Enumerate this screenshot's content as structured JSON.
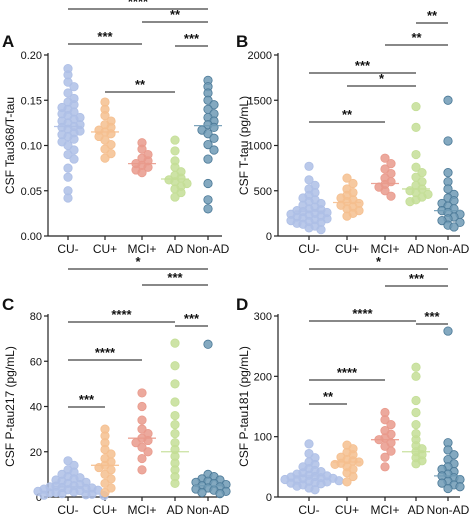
{
  "figure": {
    "colors": {
      "CU-": "#aebfe6",
      "CU+": "#f5bf8f",
      "MCI+": "#e99a8c",
      "AD": "#c4de96",
      "Non-AD": "#6f9ab5"
    }
  },
  "chart_data": [
    {
      "panel": "A",
      "type": "scatter",
      "ylabel": "CSF Tau368/T-tau",
      "ylim": [
        0,
        0.2
      ],
      "yticks": [
        "0.00",
        "0.05",
        "0.10",
        "0.15",
        "0.20"
      ],
      "categories": [
        "CU-",
        "CU+",
        "MCI+",
        "AD",
        "Non-AD"
      ],
      "series": [
        {
          "category": "CU-",
          "median": 0.121,
          "values": [
            0.185,
            0.178,
            0.17,
            0.165,
            0.158,
            0.152,
            0.148,
            0.145,
            0.142,
            0.14,
            0.137,
            0.135,
            0.133,
            0.131,
            0.129,
            0.127,
            0.125,
            0.123,
            0.121,
            0.12,
            0.118,
            0.116,
            0.114,
            0.112,
            0.11,
            0.107,
            0.104,
            0.1,
            0.095,
            0.09,
            0.085,
            0.075,
            0.065,
            0.05,
            0.042
          ]
        },
        {
          "category": "CU+",
          "median": 0.115,
          "values": [
            0.148,
            0.14,
            0.133,
            0.127,
            0.123,
            0.12,
            0.117,
            0.115,
            0.113,
            0.11,
            0.106,
            0.101,
            0.096,
            0.091,
            0.086
          ]
        },
        {
          "category": "MCI+",
          "median": 0.08,
          "values": [
            0.103,
            0.096,
            0.09,
            0.086,
            0.083,
            0.08,
            0.078,
            0.076,
            0.073,
            0.07
          ]
        },
        {
          "category": "AD",
          "median": 0.063,
          "values": [
            0.106,
            0.094,
            0.083,
            0.076,
            0.071,
            0.067,
            0.064,
            0.062,
            0.06,
            0.058,
            0.055,
            0.052,
            0.048,
            0.043
          ]
        },
        {
          "category": "Non-AD",
          "median": 0.122,
          "values": [
            0.172,
            0.165,
            0.158,
            0.15,
            0.145,
            0.14,
            0.135,
            0.131,
            0.127,
            0.123,
            0.12,
            0.117,
            0.113,
            0.108,
            0.101,
            0.095,
            0.085,
            0.058,
            0.04,
            0.03
          ]
        }
      ],
      "significance": [
        {
          "from": "CU-",
          "to": "Non-AD",
          "label": "****"
        },
        {
          "from": "MCI+",
          "to": "Non-AD",
          "label": "**"
        },
        {
          "from": "CU-",
          "to": "MCI+",
          "label": "***"
        },
        {
          "from": "AD",
          "to": "Non-AD",
          "label": "***"
        },
        {
          "from": "CU+",
          "to": "AD",
          "label": "**"
        }
      ]
    },
    {
      "panel": "B",
      "type": "scatter",
      "ylabel": "CSF T-tau (pg/mL)",
      "ylim": [
        0,
        2000
      ],
      "yticks": [
        "0",
        "500",
        "1000",
        "1500",
        "2000"
      ],
      "categories": [
        "CU-",
        "CU+",
        "MCI+",
        "AD",
        "Non-AD"
      ],
      "series": [
        {
          "category": "CU-",
          "median": 275,
          "values": [
            770,
            620,
            560,
            520,
            480,
            450,
            420,
            400,
            380,
            360,
            340,
            320,
            300,
            290,
            280,
            270,
            260,
            250,
            240,
            230,
            220,
            210,
            200,
            190,
            180,
            170,
            160,
            150,
            140,
            130,
            110,
            90,
            70
          ]
        },
        {
          "category": "CU+",
          "median": 370,
          "values": [
            640,
            580,
            520,
            480,
            450,
            420,
            400,
            380,
            360,
            340,
            320,
            300,
            280,
            250,
            220
          ]
        },
        {
          "category": "MCI+",
          "median": 580,
          "values": [
            860,
            800,
            740,
            690,
            640,
            600,
            570,
            540,
            500,
            440
          ]
        },
        {
          "category": "AD",
          "median": 520,
          "values": [
            1430,
            1200,
            900,
            760,
            700,
            650,
            600,
            560,
            520,
            500,
            480,
            460,
            430,
            400,
            380
          ]
        },
        {
          "category": "Non-AD",
          "median": 280,
          "values": [
            1500,
            1050,
            700,
            600,
            520,
            460,
            420,
            390,
            360,
            330,
            300,
            280,
            260,
            240,
            210,
            190,
            170,
            150,
            120,
            100
          ]
        }
      ],
      "significance": [
        {
          "from": "AD",
          "to": "Non-AD",
          "label": "**"
        },
        {
          "from": "MCI+",
          "to": "Non-AD",
          "label": "**"
        },
        {
          "from": "CU-",
          "to": "AD",
          "label": "***"
        },
        {
          "from": "CU+",
          "to": "AD",
          "label": "*"
        },
        {
          "from": "CU-",
          "to": "MCI+",
          "label": "**"
        }
      ]
    },
    {
      "panel": "C",
      "type": "scatter",
      "ylabel": "CSF P-tau217 (pg/mL)",
      "ylim": [
        0,
        80
      ],
      "yticks": [
        "0",
        "20",
        "40",
        "60",
        "80"
      ],
      "categories": [
        "CU-",
        "CU+",
        "MCI+",
        "AD",
        "Non-AD"
      ],
      "series": [
        {
          "category": "CU-",
          "median": 4.5,
          "values": [
            16,
            14,
            12,
            11,
            10,
            9,
            8.5,
            8,
            7.5,
            7,
            6.5,
            6,
            5.5,
            5,
            4.8,
            4.5,
            4.2,
            4,
            3.8,
            3.5,
            3.2,
            3,
            2.8,
            2.5,
            2.2,
            2,
            1.8,
            1.5,
            1.2,
            1,
            0.8,
            0.6
          ]
        },
        {
          "category": "CU+",
          "median": 14,
          "values": [
            30,
            27,
            24,
            21,
            19,
            17,
            15.5,
            14,
            13,
            12,
            10,
            8,
            6,
            4,
            2
          ]
        },
        {
          "category": "MCI+",
          "median": 26,
          "values": [
            46,
            40,
            34,
            30,
            28,
            26,
            25,
            24,
            22,
            20,
            17,
            12
          ]
        },
        {
          "category": "AD",
          "median": 20,
          "values": [
            68,
            58,
            50,
            42,
            36,
            32,
            28,
            24,
            21,
            18,
            15,
            12,
            9,
            6
          ]
        },
        {
          "category": "Non-AD",
          "median": 5,
          "values": [
            67.5,
            10,
            9,
            8,
            7.5,
            7,
            6.5,
            6,
            5.5,
            5,
            4.5,
            4,
            3.5,
            3,
            2.5,
            2,
            1.5
          ]
        }
      ],
      "significance": [
        {
          "from": "CU-",
          "to": "Non-AD",
          "label": "*"
        },
        {
          "from": "MCI+",
          "to": "Non-AD",
          "label": "***"
        },
        {
          "from": "CU-",
          "to": "AD",
          "label": "****"
        },
        {
          "from": "AD",
          "to": "Non-AD",
          "label": "***"
        },
        {
          "from": "CU-",
          "to": "MCI+",
          "label": "****"
        },
        {
          "from": "CU-",
          "to": "CU+",
          "label": "***"
        }
      ]
    },
    {
      "panel": "D",
      "type": "scatter",
      "ylabel": "CSF P-tau181 (pg/mL)",
      "ylim": [
        0,
        300
      ],
      "yticks": [
        "0",
        "100",
        "200",
        "300"
      ],
      "categories": [
        "CU-",
        "CU+",
        "MCI+",
        "AD",
        "Non-AD"
      ],
      "series": [
        {
          "category": "CU-",
          "median": 35,
          "values": [
            88,
            72,
            65,
            58,
            54,
            50,
            47,
            44,
            42,
            40,
            38,
            36,
            35,
            34,
            33,
            32,
            31,
            30,
            29,
            28,
            27,
            26,
            25,
            24,
            23,
            22,
            20,
            18,
            15,
            12
          ]
        },
        {
          "category": "CU+",
          "median": 58,
          "values": [
            86,
            80,
            74,
            70,
            66,
            62,
            60,
            58,
            56,
            54,
            50,
            46,
            40,
            34,
            25
          ]
        },
        {
          "category": "MCI+",
          "median": 95,
          "values": [
            140,
            128,
            120,
            110,
            104,
            98,
            95,
            90,
            84,
            76,
            66,
            50
          ]
        },
        {
          "category": "AD",
          "median": 75,
          "values": [
            215,
            200,
            160,
            140,
            120,
            105,
            95,
            85,
            80,
            75,
            70,
            65,
            60,
            55
          ]
        },
        {
          "category": "Non-AD",
          "median": 35,
          "values": [
            275,
            90,
            78,
            70,
            62,
            55,
            50,
            46,
            42,
            38,
            35,
            32,
            29,
            26,
            23,
            20,
            17,
            14
          ]
        }
      ],
      "significance": [
        {
          "from": "CU-",
          "to": "Non-AD",
          "label": "*"
        },
        {
          "from": "MCI+",
          "to": "Non-AD",
          "label": "***"
        },
        {
          "from": "CU-",
          "to": "AD",
          "label": "****"
        },
        {
          "from": "AD",
          "to": "Non-AD",
          "label": "***"
        },
        {
          "from": "CU-",
          "to": "MCI+",
          "label": "****"
        },
        {
          "from": "CU-",
          "to": "CU+",
          "label": "**"
        }
      ]
    }
  ]
}
